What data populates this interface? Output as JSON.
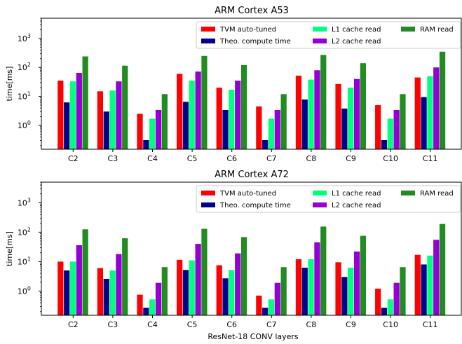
{
  "figure": {
    "xlabel": "ResNet-18 CONV layers"
  },
  "chart_data": [
    {
      "type": "bar",
      "title": "ARM Cortex A53",
      "ylabel": "time[ms]",
      "xlabel": "",
      "yscale": "log",
      "ylim": [
        0.15,
        5000
      ],
      "yticks": [
        {
          "v": 1,
          "mant": "10",
          "exp": "0"
        },
        {
          "v": 10,
          "mant": "10",
          "exp": "1"
        },
        {
          "v": 100,
          "mant": "10",
          "exp": "2"
        },
        {
          "v": 1000,
          "mant": "10",
          "exp": "3"
        }
      ],
      "legend": "top-right",
      "grid": false,
      "categories": [
        "C2",
        "C3",
        "C4",
        "C5",
        "C6",
        "C7",
        "C8",
        "C9",
        "C10",
        "C11"
      ],
      "series": [
        {
          "name": "TVM auto-tuned",
          "color": "#ff0000",
          "values": [
            35,
            15,
            2.5,
            60,
            20,
            4.5,
            52,
            27,
            5,
            45
          ]
        },
        {
          "name": "Theo. compute time",
          "color": "#00008b",
          "values": [
            6.2,
            3.0,
            0.31,
            6.5,
            3.4,
            0.31,
            7.8,
            3.8,
            0.31,
            9.5
          ]
        },
        {
          "name": "L1 cache read",
          "color": "#00ff7f",
          "values": [
            33,
            16,
            1.7,
            35,
            17,
            1.7,
            38,
            20,
            1.7,
            50
          ]
        },
        {
          "name": "L2 cache read",
          "color": "#9400d3",
          "values": [
            65,
            33,
            3.4,
            72,
            35,
            3.4,
            80,
            40,
            3.4,
            100
          ]
        },
        {
          "name": "RAM read",
          "color": "#228b22",
          "values": [
            240,
            115,
            12,
            250,
            120,
            12,
            270,
            140,
            12,
            350
          ]
        }
      ]
    },
    {
      "type": "bar",
      "title": "ARM Cortex A72",
      "ylabel": "time[ms]",
      "xlabel": "ResNet-18 CONV layers",
      "yscale": "log",
      "ylim": [
        0.15,
        5000
      ],
      "yticks": [
        {
          "v": 1,
          "mant": "10",
          "exp": "0"
        },
        {
          "v": 10,
          "mant": "10",
          "exp": "1"
        },
        {
          "v": 100,
          "mant": "10",
          "exp": "2"
        },
        {
          "v": 1000,
          "mant": "10",
          "exp": "3"
        }
      ],
      "legend": "top-right",
      "grid": false,
      "categories": [
        "C2",
        "C3",
        "C4",
        "C5",
        "C6",
        "C7",
        "C8",
        "C9",
        "C10",
        "C11"
      ],
      "series": [
        {
          "name": "TVM auto-tuned",
          "color": "#ff0000",
          "values": [
            10,
            6,
            0.75,
            11.5,
            7.5,
            0.7,
            12,
            9.5,
            1.2,
            17
          ]
        },
        {
          "name": "Theo. compute time",
          "color": "#00008b",
          "values": [
            5,
            2.6,
            0.27,
            5.2,
            2.7,
            0.27,
            6.2,
            3.0,
            0.27,
            8
          ]
        },
        {
          "name": "L1 cache read",
          "color": "#00ff7f",
          "values": [
            10,
            5,
            0.52,
            11,
            5.2,
            0.52,
            12,
            6.2,
            0.52,
            16
          ]
        },
        {
          "name": "L2 cache read",
          "color": "#9400d3",
          "values": [
            36,
            18,
            1.9,
            40,
            19,
            1.9,
            45,
            22,
            1.9,
            55
          ]
        },
        {
          "name": "RAM read",
          "color": "#228b22",
          "values": [
            125,
            62,
            6.5,
            130,
            68,
            6.5,
            155,
            75,
            6.5,
            190
          ]
        }
      ]
    }
  ]
}
